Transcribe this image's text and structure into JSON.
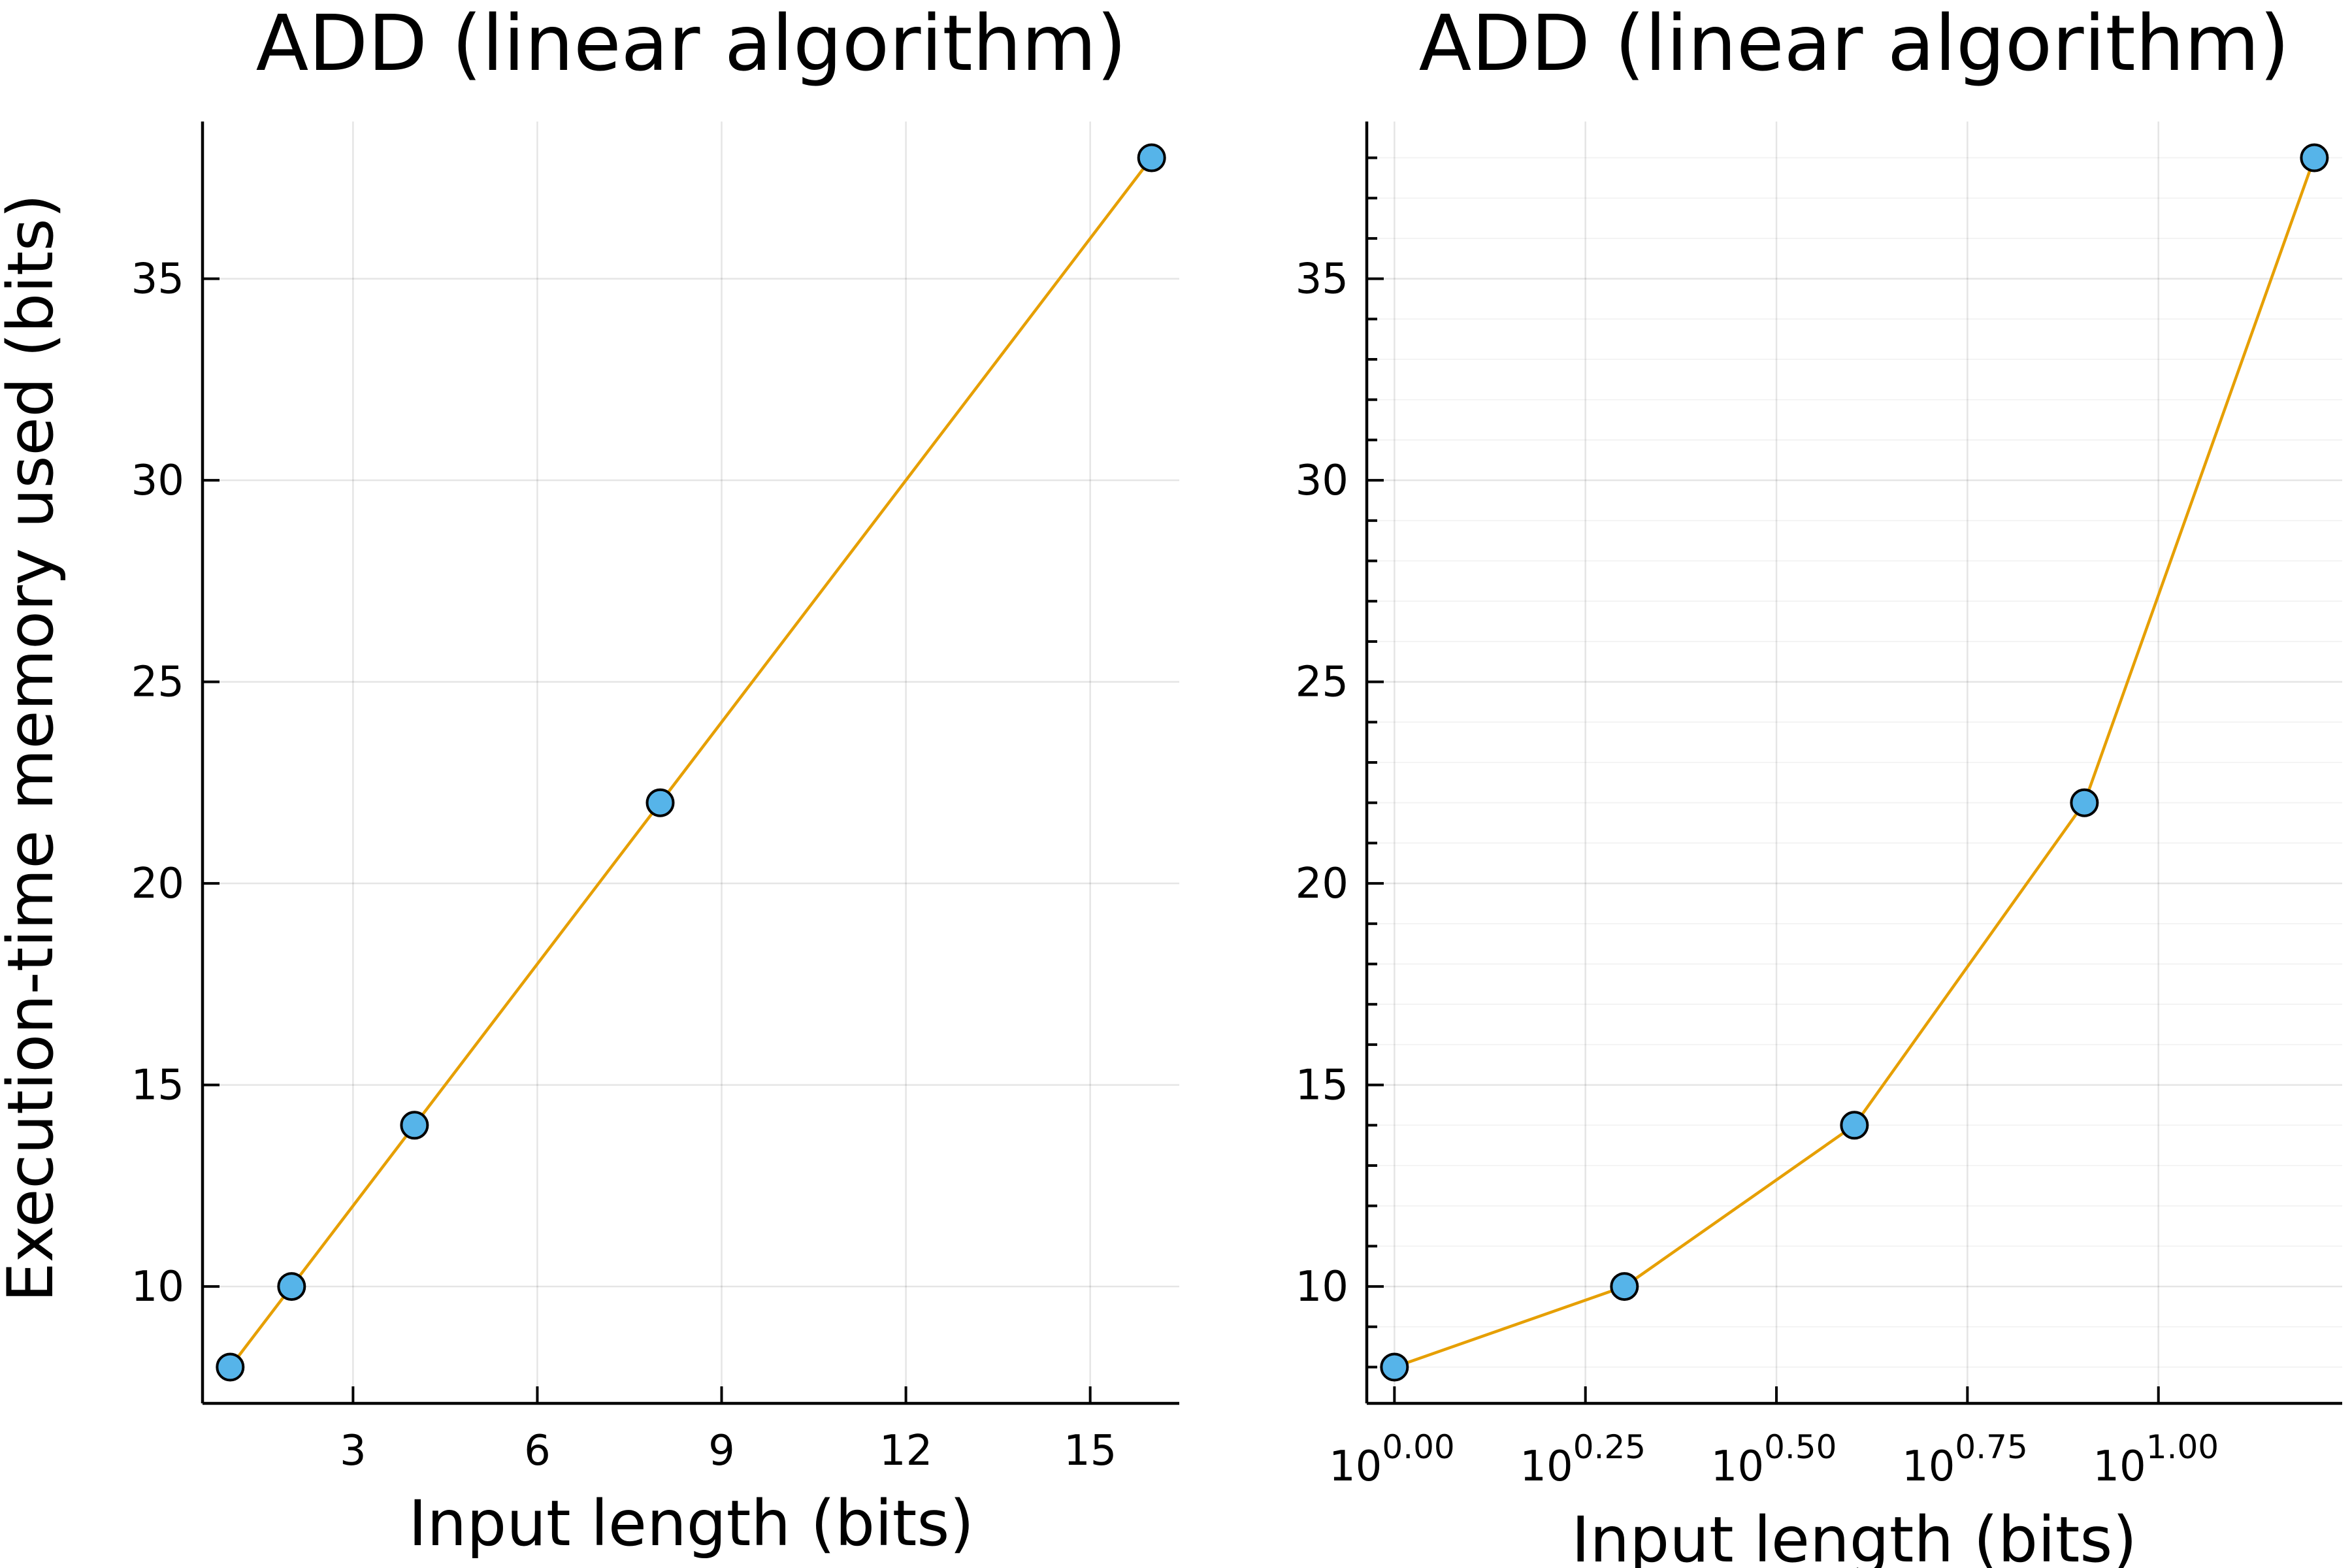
{
  "chart_data": [
    {
      "type": "line",
      "title": "ADD (linear algorithm)",
      "xlabel": "Input length (bits)",
      "ylabel": "Execution-time memory used (bits)",
      "x_scale": "linear",
      "xlim": [
        0.55,
        16.45
      ],
      "ylim": [
        7.1,
        38.9
      ],
      "x_ticks": [
        3,
        6,
        9,
        12,
        15
      ],
      "y_ticks": [
        10,
        15,
        20,
        25,
        30,
        35
      ],
      "grid": true,
      "legend": "none",
      "series": [
        {
          "x": [
            1,
            2,
            4,
            8,
            16
          ],
          "y": [
            8,
            10,
            14,
            22,
            38
          ],
          "line_color": "#e69f00",
          "marker_color": "#56b4e9"
        }
      ]
    },
    {
      "type": "line",
      "title": "ADD (linear algorithm)",
      "xlabel": "Input length (bits)",
      "ylabel": "",
      "x_scale": "log10",
      "xlim": [
        0.92,
        17.4
      ],
      "ylim": [
        7.1,
        38.9
      ],
      "x_ticks": [
        {
          "base": "10",
          "exp": "0.00",
          "value": 1.0
        },
        {
          "base": "10",
          "exp": "0.25",
          "value": 1.7783
        },
        {
          "base": "10",
          "exp": "0.50",
          "value": 3.1623
        },
        {
          "base": "10",
          "exp": "0.75",
          "value": 5.6234
        },
        {
          "base": "10",
          "exp": "1.00",
          "value": 10.0
        }
      ],
      "y_ticks": [
        10,
        15,
        20,
        25,
        30,
        35
      ],
      "y_minor_ticks": true,
      "grid": true,
      "legend": "none",
      "series": [
        {
          "x": [
            1,
            2,
            4,
            8,
            16
          ],
          "y": [
            8,
            10,
            14,
            22,
            38
          ],
          "line_color": "#e69f00",
          "marker_color": "#56b4e9"
        }
      ]
    }
  ]
}
